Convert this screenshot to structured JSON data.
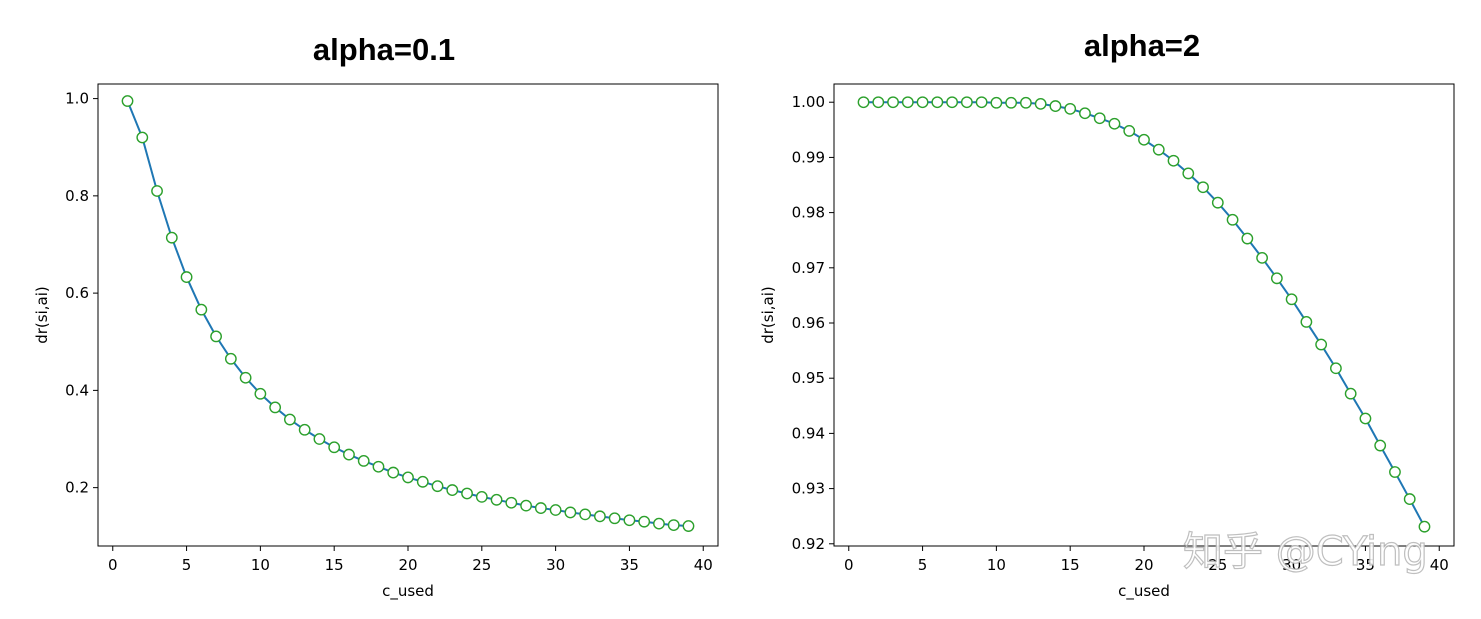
{
  "watermark": "知乎 @CYing",
  "colors": {
    "line": "#1f77b4",
    "marker_edge": "#2ca02c",
    "marker_face": "#ffffff"
  },
  "chart_data": [
    {
      "type": "line",
      "title": "alpha=0.1",
      "xlabel": "c_used",
      "ylabel": "dr(si,ai)",
      "xlim": [
        -1,
        41
      ],
      "ylim": [
        0.08,
        1.03
      ],
      "xticks": [
        0,
        5,
        10,
        15,
        20,
        25,
        30,
        35,
        40
      ],
      "yticks": [
        0.2,
        0.4,
        0.6,
        0.8,
        1.0
      ],
      "ytick_labels": [
        "0.2",
        "0.4",
        "0.6",
        "0.8",
        "1.0"
      ],
      "grid": false,
      "x": [
        1,
        2,
        3,
        4,
        5,
        6,
        7,
        8,
        9,
        10,
        11,
        12,
        13,
        14,
        15,
        16,
        17,
        18,
        19,
        20,
        21,
        22,
        23,
        24,
        25,
        26,
        27,
        28,
        29,
        30,
        31,
        32,
        33,
        34,
        35,
        36,
        37,
        38,
        39
      ],
      "y": [
        0.995,
        0.92,
        0.81,
        0.714,
        0.633,
        0.566,
        0.511,
        0.465,
        0.426,
        0.393,
        0.365,
        0.34,
        0.319,
        0.3,
        0.283,
        0.268,
        0.255,
        0.243,
        0.231,
        0.221,
        0.212,
        0.203,
        0.195,
        0.188,
        0.181,
        0.175,
        0.169,
        0.163,
        0.158,
        0.154,
        0.149,
        0.145,
        0.141,
        0.137,
        0.133,
        0.13,
        0.126,
        0.123,
        0.121
      ]
    },
    {
      "type": "line",
      "title": "alpha=2",
      "xlabel": "c_used",
      "ylabel": "dr(si,ai)",
      "xlim": [
        -1,
        41
      ],
      "ylim": [
        0.9196,
        1.0033
      ],
      "xticks": [
        0,
        5,
        10,
        15,
        20,
        25,
        30,
        35,
        40
      ],
      "yticks": [
        0.92,
        0.93,
        0.94,
        0.95,
        0.96,
        0.97,
        0.98,
        0.99,
        1.0
      ],
      "ytick_labels": [
        "0.92",
        "0.93",
        "0.94",
        "0.95",
        "0.96",
        "0.97",
        "0.98",
        "0.99",
        "1.00"
      ],
      "grid": false,
      "x": [
        1,
        2,
        3,
        4,
        5,
        6,
        7,
        8,
        9,
        10,
        11,
        12,
        13,
        14,
        15,
        16,
        17,
        18,
        19,
        20,
        21,
        22,
        23,
        24,
        25,
        26,
        27,
        28,
        29,
        30,
        31,
        32,
        33,
        34,
        35,
        36,
        37,
        38,
        39
      ],
      "y": [
        1.0,
        1.0,
        1.0,
        1.0,
        1.0,
        1.0,
        1.0,
        1.0,
        1.0,
        0.9999,
        0.9999,
        0.9999,
        0.9997,
        0.9993,
        0.9988,
        0.998,
        0.9971,
        0.9961,
        0.9948,
        0.9932,
        0.9914,
        0.9894,
        0.9871,
        0.9846,
        0.9818,
        0.9787,
        0.9753,
        0.9718,
        0.9681,
        0.9643,
        0.9602,
        0.9561,
        0.9518,
        0.9472,
        0.9427,
        0.9378,
        0.933,
        0.9281,
        0.9231
      ]
    }
  ]
}
